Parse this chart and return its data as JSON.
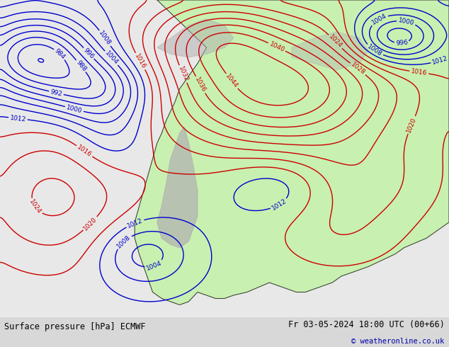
{
  "title_left": "Surface pressure [hPa] ECMWF",
  "title_right": "Fr 03-05-2024 18:00 UTC (00+66)",
  "copyright": "© weatheronline.co.uk",
  "ocean_color": "#e8e8e8",
  "land_color": "#c8f0b0",
  "terrain_color": "#b0b0b0",
  "border_color": "#333333",
  "footer_bg": "#d8d8d8",
  "contour_low_color": "#0000cc",
  "contour_mid_color": "#000000",
  "contour_high_color": "#cc0000",
  "contour_lw": 1.0,
  "label_fontsize": 6.5
}
